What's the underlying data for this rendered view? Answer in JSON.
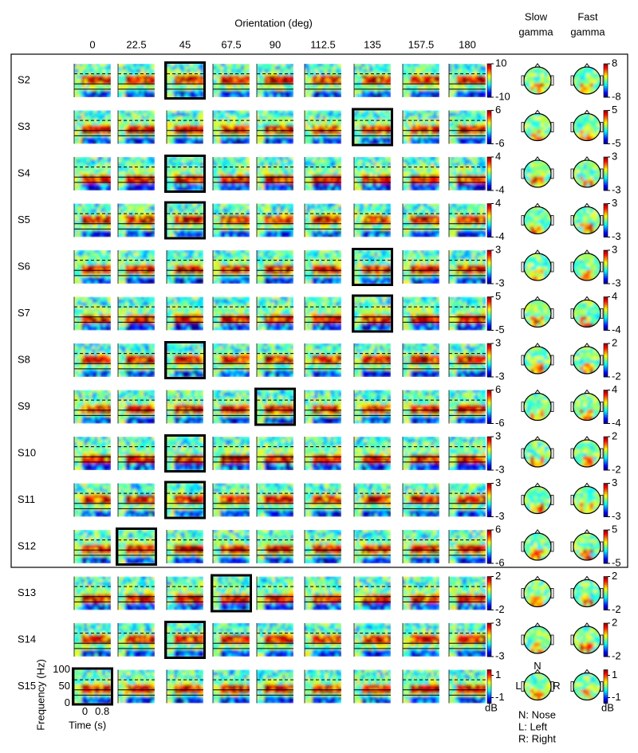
{
  "chart_data": {
    "type": "spectrogram_grid",
    "title": "Orientation (deg)",
    "orientations": [
      "0",
      "22.5",
      "45",
      "67.5",
      "90",
      "112.5",
      "135",
      "157.5",
      "180"
    ],
    "slow_title": [
      "Slow",
      "gamma"
    ],
    "fast_title": [
      "Fast",
      "gamma"
    ],
    "y_label": "Frequency (Hz)",
    "ylim": [
      0,
      100
    ],
    "yticks": [
      0,
      50,
      100
    ],
    "x_label": "Time (s)",
    "xlim": [
      -0.5,
      1.2
    ],
    "xticks": [
      0,
      0.8
    ],
    "unit": "dB",
    "head_labels": [
      "N",
      "L",
      "R"
    ],
    "notes": [
      "N: Nose",
      "L: Left",
      "R: Right"
    ],
    "subjects": [
      {
        "name": "S2",
        "selected": 2,
        "clim": [
          -10,
          10
        ],
        "cticks": [
          10,
          -10
        ],
        "topo_clim": [
          -8,
          8
        ],
        "topo_ticks": [
          8,
          -8
        ]
      },
      {
        "name": "S3",
        "selected": 6,
        "clim": [
          -6,
          6
        ],
        "cticks": [
          6,
          -6
        ],
        "topo_clim": [
          -5,
          5
        ],
        "topo_ticks": [
          5,
          -5
        ]
      },
      {
        "name": "S4",
        "selected": 2,
        "clim": [
          -4,
          4
        ],
        "cticks": [
          4,
          -4
        ],
        "topo_clim": [
          -3,
          3
        ],
        "topo_ticks": [
          3,
          -3
        ]
      },
      {
        "name": "S5",
        "selected": 2,
        "clim": [
          -4,
          4
        ],
        "cticks": [
          4,
          -4
        ],
        "topo_clim": [
          -3,
          3
        ],
        "topo_ticks": [
          3,
          -3
        ]
      },
      {
        "name": "S6",
        "selected": 6,
        "clim": [
          -3,
          3
        ],
        "cticks": [
          3,
          -3
        ],
        "topo_clim": [
          -3,
          3
        ],
        "topo_ticks": [
          3,
          -3
        ]
      },
      {
        "name": "S7",
        "selected": 6,
        "clim": [
          -5,
          5
        ],
        "cticks": [
          5,
          -5
        ],
        "topo_clim": [
          -4,
          4
        ],
        "topo_ticks": [
          4,
          -4
        ]
      },
      {
        "name": "S8",
        "selected": 2,
        "clim": [
          -3,
          3
        ],
        "cticks": [
          3,
          -3
        ],
        "topo_clim": [
          -2,
          2
        ],
        "topo_ticks": [
          2,
          -2
        ]
      },
      {
        "name": "S9",
        "selected": 4,
        "clim": [
          -6,
          6
        ],
        "cticks": [
          6,
          -6
        ],
        "topo_clim": [
          -4,
          4
        ],
        "topo_ticks": [
          4,
          -4
        ]
      },
      {
        "name": "S10",
        "selected": 2,
        "clim": [
          -3,
          3
        ],
        "cticks": [
          3,
          -3
        ],
        "topo_clim": [
          -2,
          2
        ],
        "topo_ticks": [
          2,
          -2
        ]
      },
      {
        "name": "S11",
        "selected": 2,
        "clim": [
          -3,
          3
        ],
        "cticks": [
          3,
          -3
        ],
        "topo_clim": [
          -3,
          3
        ],
        "topo_ticks": [
          3,
          -3
        ]
      },
      {
        "name": "S12",
        "selected": 1,
        "clim": [
          -6,
          6
        ],
        "cticks": [
          6,
          -6
        ],
        "topo_clim": [
          -5,
          5
        ],
        "topo_ticks": [
          5,
          -5
        ]
      },
      {
        "name": "S13",
        "selected": 3,
        "clim": [
          -2,
          2
        ],
        "cticks": [
          2,
          -2
        ],
        "topo_clim": [
          -2,
          2
        ],
        "topo_ticks": [
          2,
          -2
        ]
      },
      {
        "name": "S14",
        "selected": 2,
        "clim": [
          -3,
          3
        ],
        "cticks": [
          3,
          -3
        ],
        "topo_clim": [
          -2,
          2
        ],
        "topo_ticks": [
          2,
          -2
        ]
      },
      {
        "name": "S15",
        "selected": 0,
        "clim": [
          -1.5,
          1.5
        ],
        "cticks": [
          1,
          -1
        ],
        "topo_clim": [
          -1.5,
          1.5
        ],
        "topo_ticks": [
          1,
          -1
        ]
      }
    ]
  }
}
